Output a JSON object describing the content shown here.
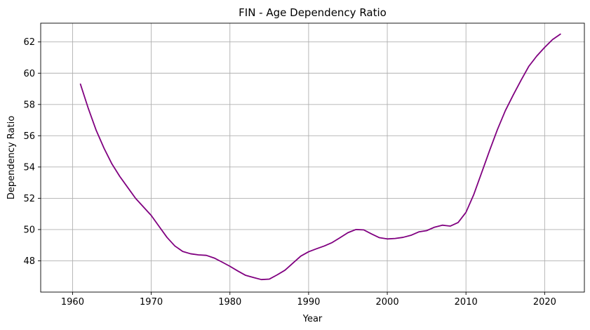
{
  "chart_data": {
    "type": "line",
    "title": "FIN - Age Dependency Ratio",
    "xlabel": "Year",
    "ylabel": "Dependency Ratio",
    "xlim": [
      1955.95,
      2025.05
    ],
    "ylim": [
      46.0,
      63.2
    ],
    "grid": true,
    "x_ticks": [
      1960,
      1970,
      1980,
      1990,
      2000,
      2010,
      2020
    ],
    "y_ticks": [
      48,
      50,
      52,
      54,
      56,
      58,
      60,
      62
    ],
    "series": [
      {
        "name": "FIN",
        "color": "#800080",
        "x": [
          1961,
          1962,
          1963,
          1964,
          1965,
          1966,
          1967,
          1968,
          1969,
          1970,
          1971,
          1972,
          1973,
          1974,
          1975,
          1976,
          1977,
          1978,
          1979,
          1980,
          1981,
          1982,
          1983,
          1984,
          1985,
          1986,
          1987,
          1988,
          1989,
          1990,
          1991,
          1992,
          1993,
          1994,
          1995,
          1996,
          1997,
          1998,
          1999,
          2000,
          2001,
          2002,
          2003,
          2004,
          2005,
          2006,
          2007,
          2008,
          2009,
          2010,
          2011,
          2012,
          2013,
          2014,
          2015,
          2016,
          2017,
          2018,
          2019,
          2020,
          2021,
          2022
        ],
        "values": [
          59.3,
          57.75,
          56.35,
          55.2,
          54.2,
          53.4,
          52.7,
          52.0,
          51.45,
          50.9,
          50.2,
          49.5,
          48.95,
          48.6,
          48.45,
          48.38,
          48.35,
          48.18,
          47.92,
          47.65,
          47.35,
          47.07,
          46.93,
          46.8,
          46.83,
          47.1,
          47.4,
          47.85,
          48.3,
          48.58,
          48.77,
          48.95,
          49.17,
          49.48,
          49.8,
          50.0,
          49.98,
          49.72,
          49.48,
          49.4,
          49.43,
          49.5,
          49.63,
          49.85,
          49.93,
          50.15,
          50.28,
          50.22,
          50.45,
          51.1,
          52.25,
          53.65,
          55.05,
          56.4,
          57.6,
          58.6,
          59.55,
          60.45,
          61.1,
          61.65,
          62.15,
          62.5
        ]
      }
    ]
  }
}
